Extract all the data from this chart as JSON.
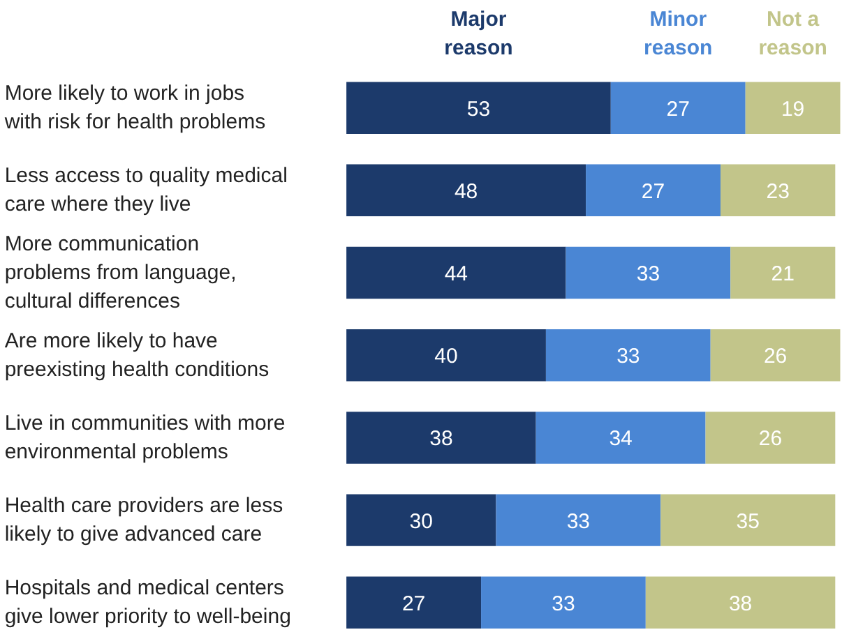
{
  "chart_data": {
    "type": "bar",
    "orientation": "horizontal",
    "stacked": true,
    "data_labels": true,
    "legend": "top",
    "grid": false,
    "tick_labels": "y",
    "categories": [
      "More likely to work in jobs\nwith risk for health problems",
      "Less access to quality medical\ncare where they live",
      "More communication\nproblems from language,\ncultural differences",
      "Are more likely to have\npreexisting health conditions",
      "Live in communities with more\nenvironmental problems",
      "Health care providers are less\nlikely to give advanced care",
      "Hospitals and medical centers\ngive lower priority to well-being"
    ],
    "series": [
      {
        "name": "Major\nreason",
        "color": "#1c3a6b",
        "values": [
          53,
          48,
          44,
          40,
          38,
          30,
          27
        ]
      },
      {
        "name": "Minor\nreason",
        "color": "#4a86d4",
        "values": [
          27,
          27,
          33,
          33,
          34,
          33,
          33
        ]
      },
      {
        "name": "Not a\nreason",
        "color": "#c2c58a",
        "values": [
          19,
          23,
          21,
          26,
          26,
          35,
          38
        ]
      }
    ]
  }
}
